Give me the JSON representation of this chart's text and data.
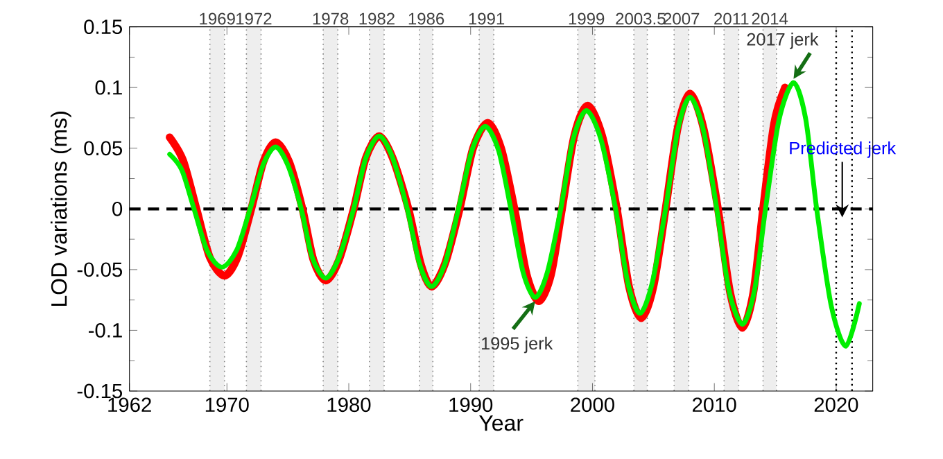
{
  "chart_data": {
    "type": "line",
    "xlabel": "Year",
    "ylabel": "LOD variations (ms)",
    "xlim": [
      1962,
      2023
    ],
    "xticks": [
      1962,
      1970,
      1980,
      1990,
      2000,
      2010,
      2020
    ],
    "ylim": [
      -0.15,
      0.15
    ],
    "yticks": [
      -0.15,
      -0.1,
      -0.05,
      0,
      0.05,
      0.1,
      0.15
    ],
    "marker": "none",
    "line_style": "solid",
    "series": [
      {
        "color": "#ff0000",
        "x": [
          1965.3,
          1966.4,
          1967.5,
          1968.6,
          1969.8,
          1970.9,
          1972.0,
          1973.0,
          1974.0,
          1975.1,
          1976.2,
          1977.1,
          1978.1,
          1979.2,
          1980.4,
          1981.4,
          1982.5,
          1983.6,
          1984.9,
          1985.9,
          1986.8,
          1987.9,
          1989.1,
          1990.2,
          1991.4,
          1992.5,
          1993.6,
          1994.6,
          1995.6,
          1996.6,
          1997.5,
          1998.5,
          1999.6,
          2000.8,
          2002.0,
          2003.0,
          2004.0,
          2005.0,
          2006.0,
          2007.0,
          2008.0,
          2009.1,
          2010.3,
          2011.3,
          2012.3,
          2013.2,
          2014.0,
          2014.9,
          2015.8
        ],
        "values": [
          0.059,
          0.04,
          0,
          -0.04,
          -0.055,
          -0.039,
          0,
          0.039,
          0.055,
          0.039,
          0,
          -0.042,
          -0.059,
          -0.042,
          0,
          0.042,
          0.06,
          0.042,
          0,
          -0.045,
          -0.064,
          -0.045,
          0,
          0.05,
          0.071,
          0.05,
          0,
          -0.054,
          -0.076,
          -0.054,
          0,
          0.06,
          0.085,
          0.06,
          0,
          -0.064,
          -0.09,
          -0.064,
          0,
          0.067,
          0.095,
          0.067,
          0,
          -0.069,
          -0.098,
          -0.069,
          0,
          0.07,
          0.1
        ]
      },
      {
        "color": "#00ee00",
        "x": [
          1965.3,
          1966.3,
          1967.3,
          1968.4,
          1969.6,
          1970.8,
          1971.9,
          1973.0,
          1974.0,
          1975.0,
          1976.1,
          1977.0,
          1978.1,
          1979.2,
          1980.4,
          1981.4,
          1982.5,
          1983.6,
          1984.8,
          1985.8,
          1986.8,
          1987.9,
          1989.0,
          1990.1,
          1991.2,
          1992.3,
          1993.3,
          1994.3,
          1995.3,
          1996.3,
          1997.4,
          1998.4,
          1999.5,
          2000.7,
          2001.9,
          2002.9,
          2003.9,
          2004.9,
          2006.0,
          2007.0,
          2008.0,
          2009.1,
          2010.2,
          2011.2,
          2012.3,
          2013.3,
          2014.2,
          2015.3,
          2016.5,
          2017.5,
          2018.4,
          2019.6,
          2020.8,
          2021.9
        ],
        "values": [
          0.045,
          0.032,
          0,
          -0.035,
          -0.048,
          -0.034,
          0,
          0.037,
          0.051,
          0.036,
          0,
          -0.04,
          -0.057,
          -0.04,
          0,
          0.042,
          0.06,
          0.042,
          0,
          -0.045,
          -0.064,
          -0.045,
          0,
          0.048,
          0.068,
          0.048,
          0,
          -0.052,
          -0.073,
          -0.052,
          0,
          0.057,
          0.081,
          0.057,
          0,
          -0.061,
          -0.086,
          -0.061,
          0,
          0.065,
          0.092,
          0.065,
          0,
          -0.067,
          -0.095,
          -0.067,
          0,
          0.073,
          0.104,
          0.074,
          0,
          -0.08,
          -0.113,
          -0.078
        ]
      }
    ],
    "ref_lines": [
      {
        "axis": "y",
        "value": 0,
        "color": "#000000",
        "line_style": "dashed"
      },
      {
        "axis": "x",
        "value": 2020.0,
        "color": "#000000",
        "line_style": "dotted"
      },
      {
        "axis": "x",
        "value": 2021.3,
        "color": "#000000",
        "line_style": "dotted"
      }
    ],
    "bands": [
      {
        "axis": "x",
        "from": 1968.6,
        "to": 1969.8,
        "label": "1969",
        "color": "#eeeeee"
      },
      {
        "axis": "x",
        "from": 1971.6,
        "to": 1972.8,
        "label": "1972",
        "color": "#eeeeee"
      },
      {
        "axis": "x",
        "from": 1977.9,
        "to": 1979.1,
        "label": "1978",
        "color": "#eeeeee"
      },
      {
        "axis": "x",
        "from": 1981.7,
        "to": 1982.9,
        "label": "1982",
        "color": "#eeeeee"
      },
      {
        "axis": "x",
        "from": 1985.8,
        "to": 1986.9,
        "label": "1986",
        "color": "#eeeeee"
      },
      {
        "axis": "x",
        "from": 1990.7,
        "to": 1991.9,
        "label": "1991",
        "color": "#eeeeee"
      },
      {
        "axis": "x",
        "from": 1998.8,
        "to": 2000.2,
        "label": "1999",
        "color": "#eeeeee"
      },
      {
        "axis": "x",
        "from": 2003.4,
        "to": 2004.5,
        "label": "2003.5",
        "color": "#eeeeee"
      },
      {
        "axis": "x",
        "from": 2006.7,
        "to": 2007.9,
        "label": "2007",
        "color": "#eeeeee"
      },
      {
        "axis": "x",
        "from": 2010.8,
        "to": 2012.0,
        "label": "2011",
        "color": "#eeeeee"
      },
      {
        "axis": "x",
        "from": 2014.0,
        "to": 2015.1,
        "label": "2014",
        "color": "#eeeeee"
      }
    ],
    "annotations": [
      {
        "text": "2017 jerk",
        "x": 2016.5,
        "y": 0.104
      },
      {
        "text": "1995 jerk",
        "x": 1995.3,
        "y": -0.073
      },
      {
        "text": "Predicted jerk",
        "x": 2020.5,
        "y": -0.01
      }
    ]
  }
}
